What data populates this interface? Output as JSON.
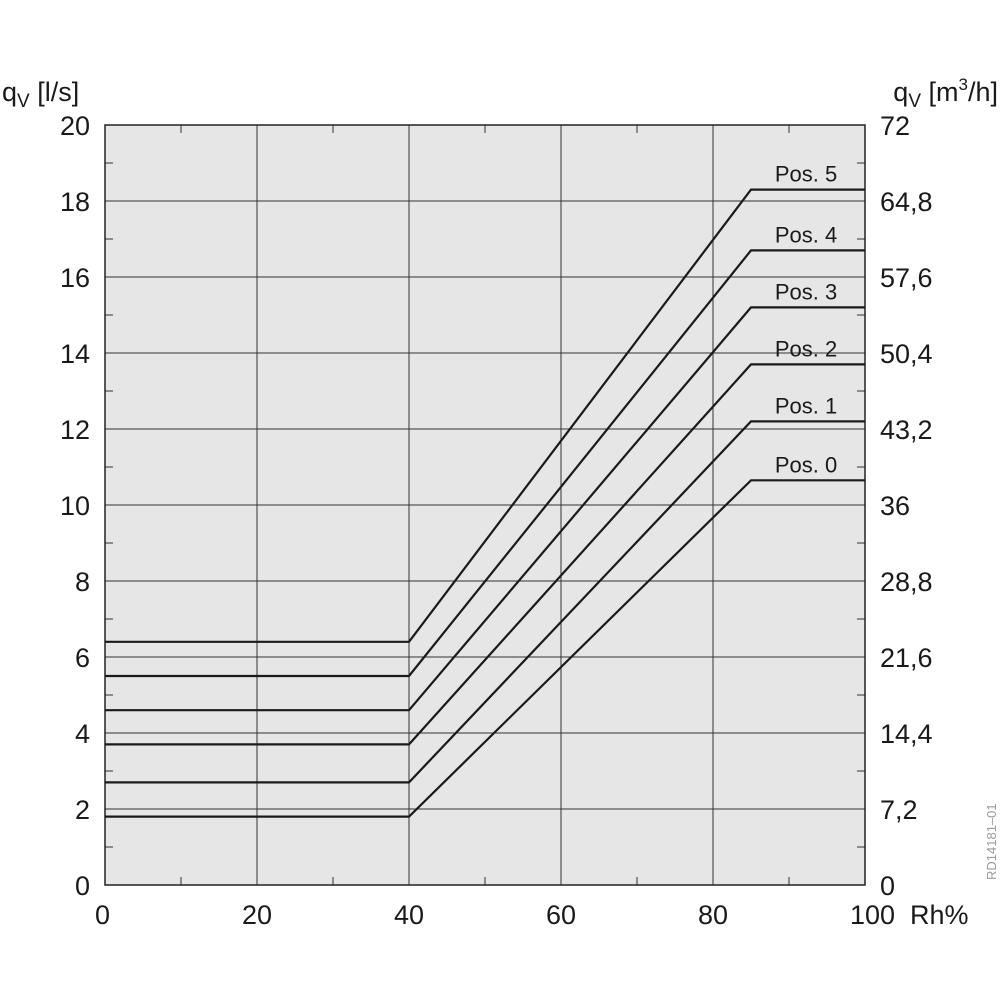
{
  "chart_data": {
    "type": "line",
    "x_label": "Rh%",
    "y_label_left": {
      "base": "q",
      "sub": "V",
      "unit": " [l/s]"
    },
    "y_label_right": {
      "base": "q",
      "sub": "V",
      "unit_pre": " [m",
      "unit_sup": "3",
      "unit_post": "/h]"
    },
    "xlim": [
      0,
      100
    ],
    "ylim": [
      0,
      20
    ],
    "x_ticks": [
      "0",
      "20",
      "40",
      "60",
      "80",
      "100"
    ],
    "y_ticks_left": [
      "0",
      "2",
      "4",
      "6",
      "8",
      "10",
      "12",
      "14",
      "16",
      "18",
      "20"
    ],
    "y_ticks_right": [
      "0",
      "7,2",
      "14,4",
      "21,6",
      "28,8",
      "36",
      "43,2",
      "50,4",
      "57,6",
      "64,8",
      "72"
    ],
    "grid": true,
    "series": [
      {
        "name": "Pos. 0",
        "x": [
          0,
          40,
          85,
          100
        ],
        "y": [
          1.8,
          1.8,
          10.65,
          10.65
        ]
      },
      {
        "name": "Pos. 1",
        "x": [
          0,
          40,
          85,
          100
        ],
        "y": [
          2.7,
          2.7,
          12.2,
          12.2
        ]
      },
      {
        "name": "Pos. 2",
        "x": [
          0,
          40,
          85,
          100
        ],
        "y": [
          3.7,
          3.7,
          13.7,
          13.7
        ]
      },
      {
        "name": "Pos. 3",
        "x": [
          0,
          40,
          85,
          100
        ],
        "y": [
          4.6,
          4.6,
          15.2,
          15.2
        ]
      },
      {
        "name": "Pos. 4",
        "x": [
          0,
          40,
          85,
          100
        ],
        "y": [
          5.5,
          5.5,
          16.7,
          16.7
        ]
      },
      {
        "name": "Pos. 5",
        "x": [
          0,
          40,
          85,
          100
        ],
        "y": [
          6.4,
          6.4,
          18.3,
          18.3
        ]
      }
    ],
    "annotation": "RD14181–01"
  }
}
